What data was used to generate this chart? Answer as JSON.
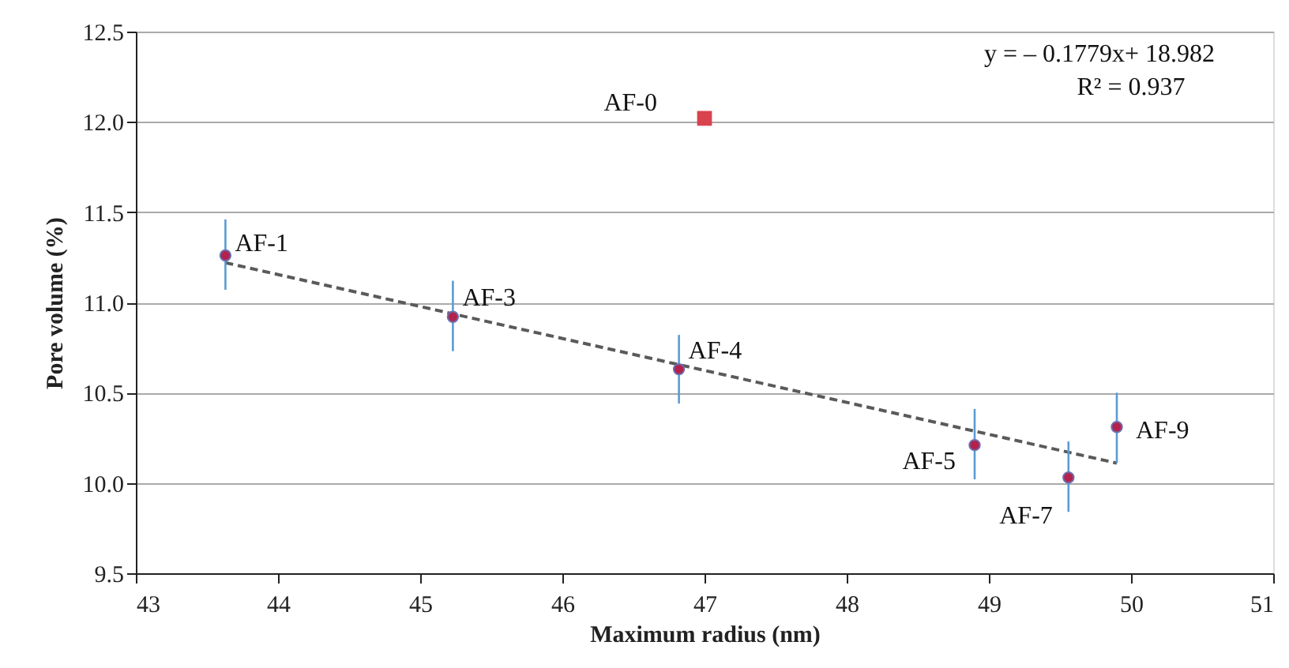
{
  "chart_data": {
    "type": "scatter",
    "xlabel": "Maximum radius (nm)",
    "ylabel": "Pore volume (%)",
    "xlim": [
      43,
      51
    ],
    "xticks": [
      43,
      44,
      45,
      46,
      47,
      48,
      49,
      50,
      51
    ],
    "ylim": [
      9.5,
      12.5
    ],
    "yticks": [
      {
        "value": 9.5,
        "label": "9.5"
      },
      {
        "value": 10,
        "label": "10.0"
      },
      {
        "value": 10.5,
        "label": "10.5"
      },
      {
        "value": 11,
        "label": "11.0"
      },
      {
        "value": 11.5,
        "label": "11.5"
      },
      {
        "value": 12,
        "label": "12.0"
      },
      {
        "value": 12.5,
        "label": "12.5"
      }
    ],
    "grid": "y",
    "series": [
      {
        "marker": "square",
        "color": "#d9434e",
        "x": [
          47.0
        ],
        "values": [
          12.02
        ]
      },
      {
        "marker": "circle",
        "color": "#b3224c",
        "x": [
          43.63,
          45.23,
          46.82,
          48.9,
          49.56,
          49.9
        ],
        "values": [
          11.26,
          10.92,
          10.63,
          10.21,
          10.03,
          10.31
        ],
        "errors": [
          [
            11.07,
            11.46
          ],
          [
            10.73,
            11.12
          ],
          [
            10.44,
            10.82
          ],
          [
            10.02,
            10.41
          ],
          [
            9.84,
            10.23
          ],
          [
            10.11,
            10.5
          ]
        ]
      },
      {
        "type": "line",
        "line_style": "dashed",
        "color": "#5a5a5a",
        "x": [
          43.63,
          49.9
        ],
        "values": [
          11.22,
          10.11
        ]
      }
    ],
    "annotations": [
      "y = – 0.1779x+ 18.982",
      "R² = 0.937",
      {
        "text": "AF-0",
        "x": 47.0,
        "y": 12.02
      },
      {
        "text": "AF-1",
        "x": 43.63,
        "y": 11.26
      },
      {
        "text": "AF-3",
        "x": 45.23,
        "y": 10.92
      },
      {
        "text": "AF-4",
        "x": 46.82,
        "y": 10.63
      },
      {
        "text": "AF-5",
        "x": 48.9,
        "y": 10.21
      },
      {
        "text": "AF-7",
        "x": 49.56,
        "y": 10.03
      },
      {
        "text": "AF-9",
        "x": 49.9,
        "y": 10.31
      }
    ]
  }
}
